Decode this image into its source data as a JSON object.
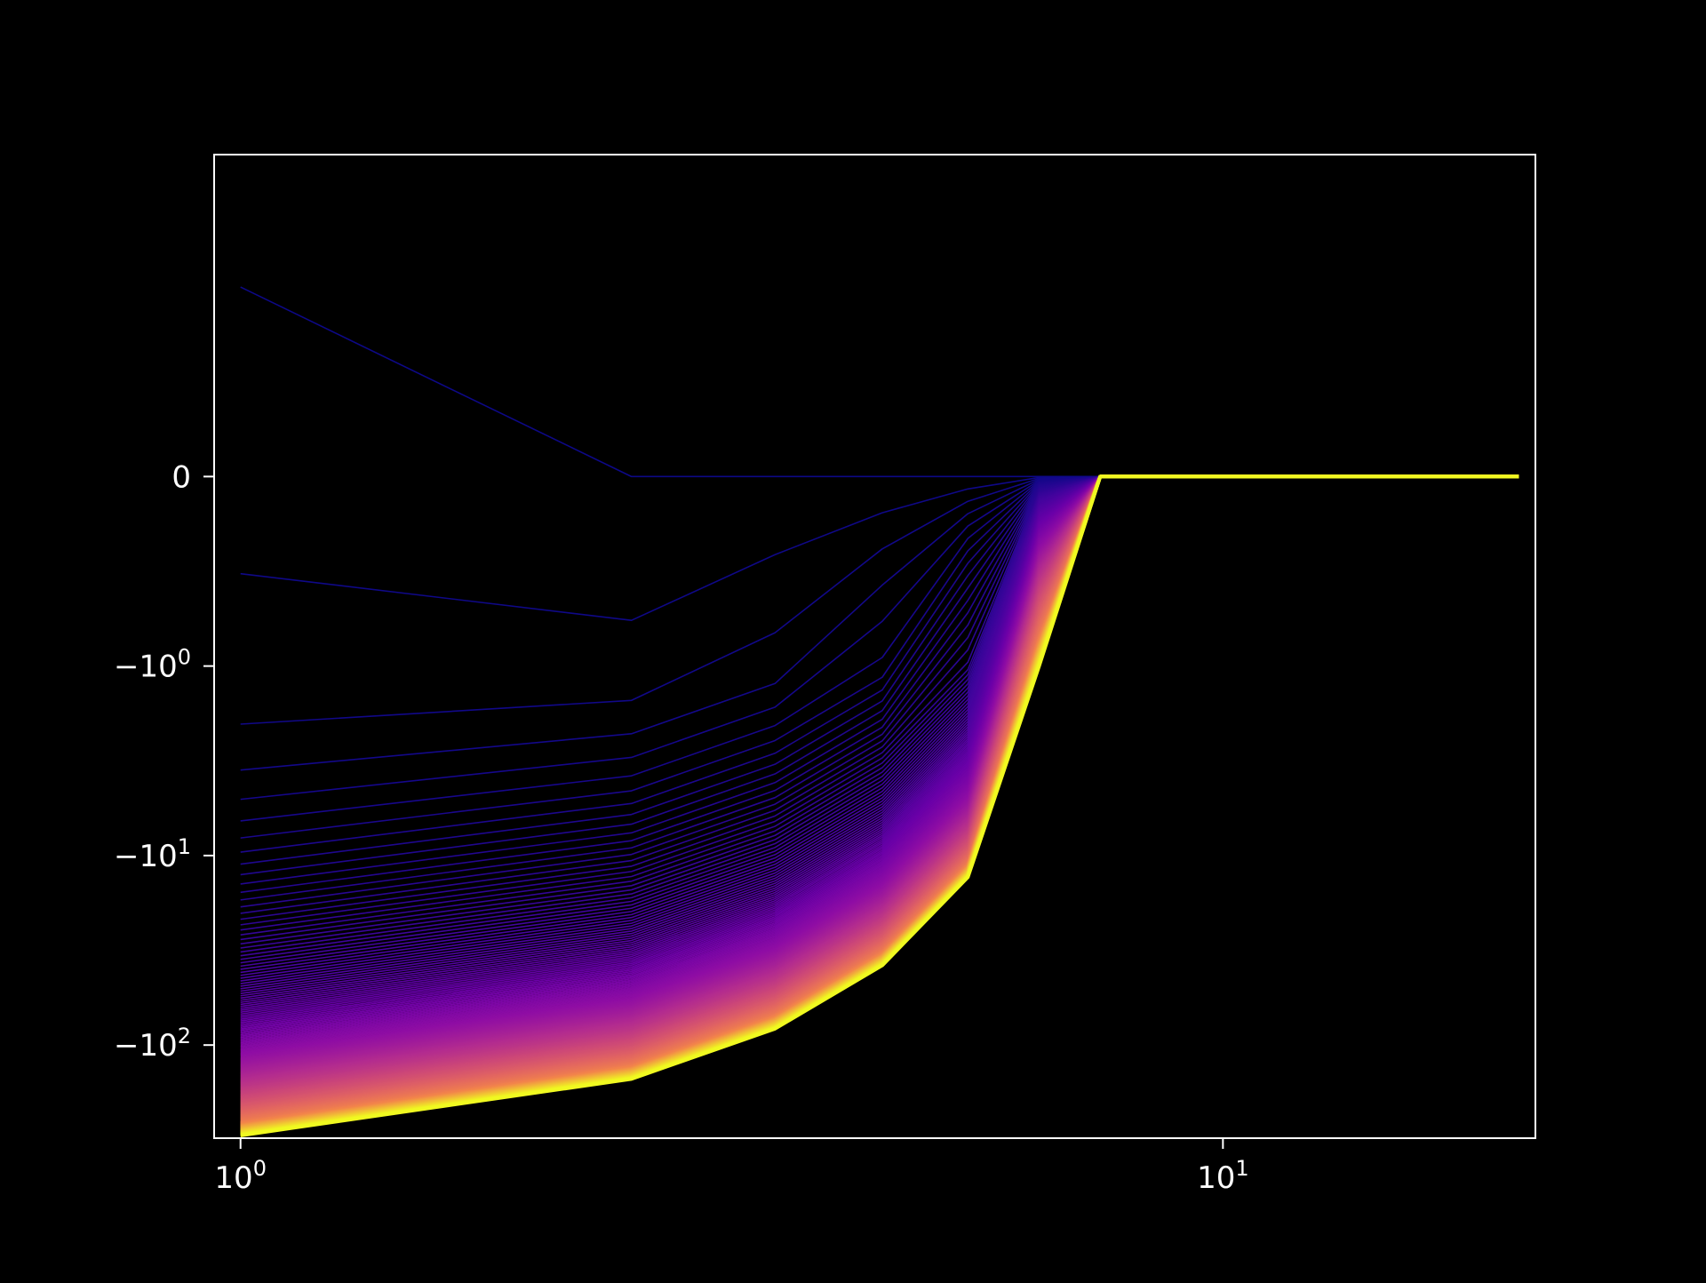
{
  "chart_data": {
    "type": "line",
    "title": "",
    "xlabel": "",
    "ylabel": "",
    "x_scale": "log",
    "y_scale": "symlog",
    "xlim": [
      0.94,
      20.8
    ],
    "ylim": [
      -310,
      5
    ],
    "grid": false,
    "legend": "none",
    "colormap": "plasma",
    "series_count": 200,
    "x": [
      1,
      2.5,
      3.5,
      4.5,
      5.5,
      6.5,
      7.5,
      8.5,
      20
    ],
    "first_series": {
      "color": "#0d0887",
      "values": [
        1,
        0,
        0,
        0,
        0,
        0,
        0,
        0,
        0
      ]
    },
    "last_series": {
      "color": "#f0f921",
      "values": [
        -300,
        -151,
        -82,
        -38,
        -13,
        -1,
        0,
        0,
        0
      ]
    },
    "x_ticks": [
      {
        "value": 1,
        "base": "10",
        "exp": "0"
      },
      {
        "value": 10,
        "base": "10",
        "exp": "1"
      }
    ],
    "y_ticks": [
      {
        "value": 0,
        "base": "0",
        "exp": ""
      },
      {
        "value": -1,
        "base": "−10",
        "exp": "0"
      },
      {
        "value": -10,
        "base": "−10",
        "exp": "1"
      },
      {
        "value": -100,
        "base": "−10",
        "exp": "2"
      }
    ],
    "colors": {
      "background": "#000000",
      "axes": "#ffffff",
      "text": "#ffffff"
    }
  }
}
